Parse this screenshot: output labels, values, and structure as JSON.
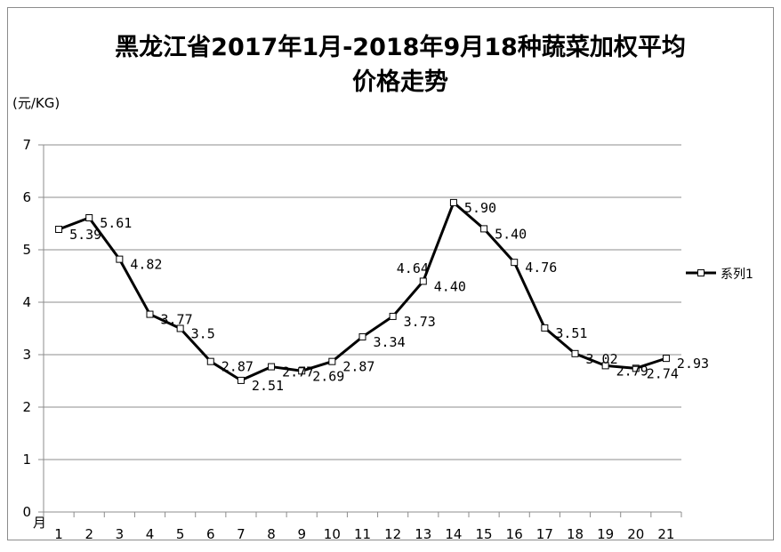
{
  "chart_data": {
    "type": "line",
    "title_line1": "黑龙江省2017年1月-2018年9月18种蔬菜加权平均",
    "title_line2": "价格走势",
    "unit_label": "(元/KG)",
    "xlabel": "月",
    "x": [
      "1",
      "2",
      "3",
      "4",
      "5",
      "6",
      "7",
      "8",
      "9",
      "10",
      "11",
      "12",
      "13",
      "14",
      "15",
      "16",
      "17",
      "18",
      "19",
      "20",
      "21"
    ],
    "ylim": [
      0,
      7
    ],
    "yticks": [
      "0",
      "1",
      "2",
      "3",
      "4",
      "5",
      "6",
      "7"
    ],
    "grid": true,
    "legend_position": "right",
    "series": [
      {
        "name": "系列1",
        "values": [
          5.39,
          5.61,
          4.82,
          3.77,
          3.5,
          2.87,
          2.51,
          2.77,
          2.69,
          2.87,
          3.34,
          3.73,
          4.4,
          5.9,
          5.4,
          4.76,
          3.51,
          3.02,
          2.79,
          2.74,
          2.93
        ],
        "labels": [
          "5.39",
          "5.61",
          "4.82",
          "3.77",
          "3.5",
          "2.87",
          "2.51",
          "2.77",
          "2.69",
          "2.87",
          "3.34",
          "3.73",
          "4.40",
          "5.90",
          "5.40",
          "4.76",
          "3.51",
          "3.02",
          "2.79",
          "2.74",
          "2.93"
        ],
        "extra_labels": [
          "4.64"
        ],
        "color": "#000000"
      }
    ]
  }
}
